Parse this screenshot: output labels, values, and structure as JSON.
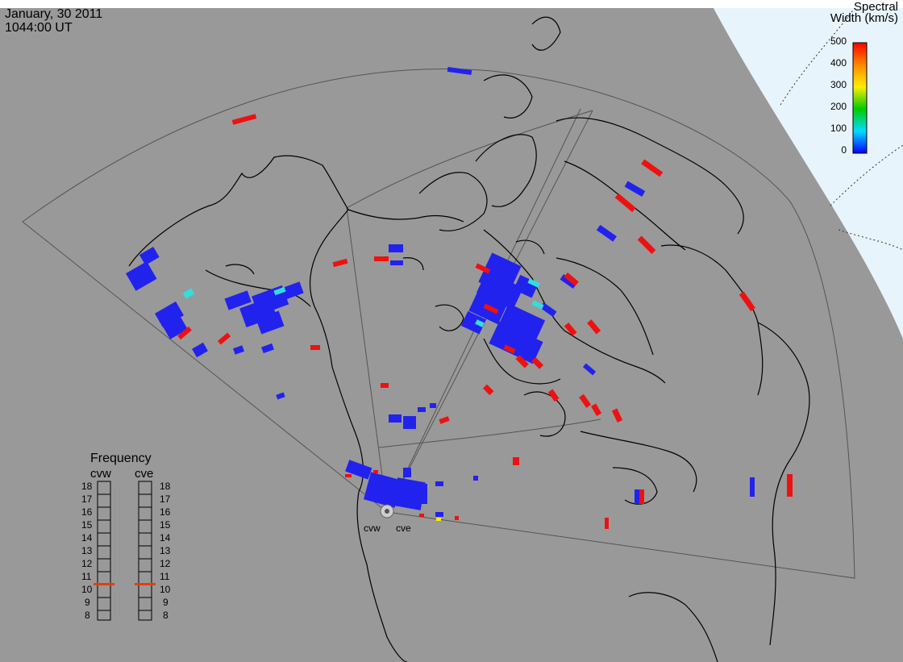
{
  "header": {
    "date": "January, 30 2011",
    "time": "1044:00 UT"
  },
  "colorbar": {
    "title_line1": "Spectral",
    "title_line2": "Width (km/s)",
    "ticks": [
      "500",
      "400",
      "300",
      "200",
      "100",
      "0"
    ],
    "colors": [
      "#ff0000",
      "#ff8800",
      "#ffee00",
      "#00cc00",
      "#00ddff",
      "#0000ff"
    ]
  },
  "frequency": {
    "title": "Frequency",
    "left_radar": "cvw",
    "right_radar": "cve",
    "ticks": [
      "18",
      "17",
      "16",
      "15",
      "14",
      "13",
      "12",
      "11",
      "10",
      "9",
      "8"
    ],
    "cvw_value_mhz": 10.8,
    "cve_value_mhz": 10.8
  },
  "radars": {
    "west_label": "cvw",
    "east_label": "cve"
  },
  "colors": {
    "background": "#999999",
    "ocean_outline": "#000000",
    "daylight": "#e8f4fc",
    "fov_line": "#555555",
    "low_width": "#2222ee",
    "high_width": "#ee1111",
    "mid_width": "#33dddd"
  }
}
